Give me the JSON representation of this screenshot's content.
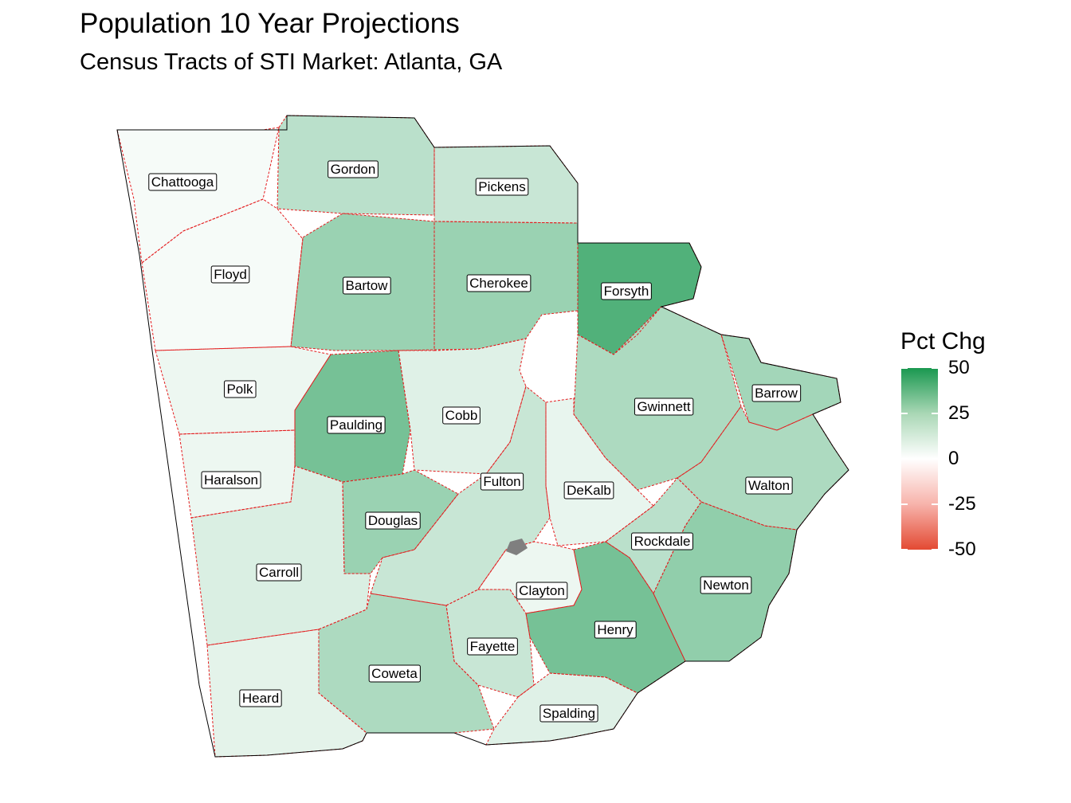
{
  "title": "Population 10 Year Projections",
  "subtitle": "Census Tracts of STI Market: Atlanta, GA",
  "legend": {
    "title": "Pct Chg",
    "ticks": [
      "50",
      "25",
      "0",
      "-25",
      "-50"
    ],
    "range": [
      -50,
      50
    ],
    "colors": {
      "high": "#1a9850",
      "mid": "#ffffff",
      "low": "#e34a33",
      "missing": "#7f7f7f",
      "boundary": "#e41a1c"
    }
  },
  "counties": [
    {
      "name": "Chattooga",
      "pct": 2
    },
    {
      "name": "Gordon",
      "pct": 15
    },
    {
      "name": "Pickens",
      "pct": 12
    },
    {
      "name": "Floyd",
      "pct": 2
    },
    {
      "name": "Bartow",
      "pct": 22
    },
    {
      "name": "Cherokee",
      "pct": 22
    },
    {
      "name": "Forsyth",
      "pct": 38
    },
    {
      "name": "Polk",
      "pct": 4
    },
    {
      "name": "Paulding",
      "pct": 30
    },
    {
      "name": "Cobb",
      "pct": 7
    },
    {
      "name": "Gwinnett",
      "pct": 18
    },
    {
      "name": "Barrow",
      "pct": 20
    },
    {
      "name": "Haralson",
      "pct": 4
    },
    {
      "name": "Fulton",
      "pct": 12
    },
    {
      "name": "DeKalb",
      "pct": 5
    },
    {
      "name": "Walton",
      "pct": 18
    },
    {
      "name": "Douglas",
      "pct": 22
    },
    {
      "name": "Rockdale",
      "pct": 15
    },
    {
      "name": "Carroll",
      "pct": 8
    },
    {
      "name": "Clayton",
      "pct": 4
    },
    {
      "name": "Newton",
      "pct": 24
    },
    {
      "name": "Henry",
      "pct": 30
    },
    {
      "name": "Fayette",
      "pct": 12
    },
    {
      "name": "Coweta",
      "pct": 18
    },
    {
      "name": "Heard",
      "pct": 6
    },
    {
      "name": "Spalding",
      "pct": 7
    }
  ]
}
